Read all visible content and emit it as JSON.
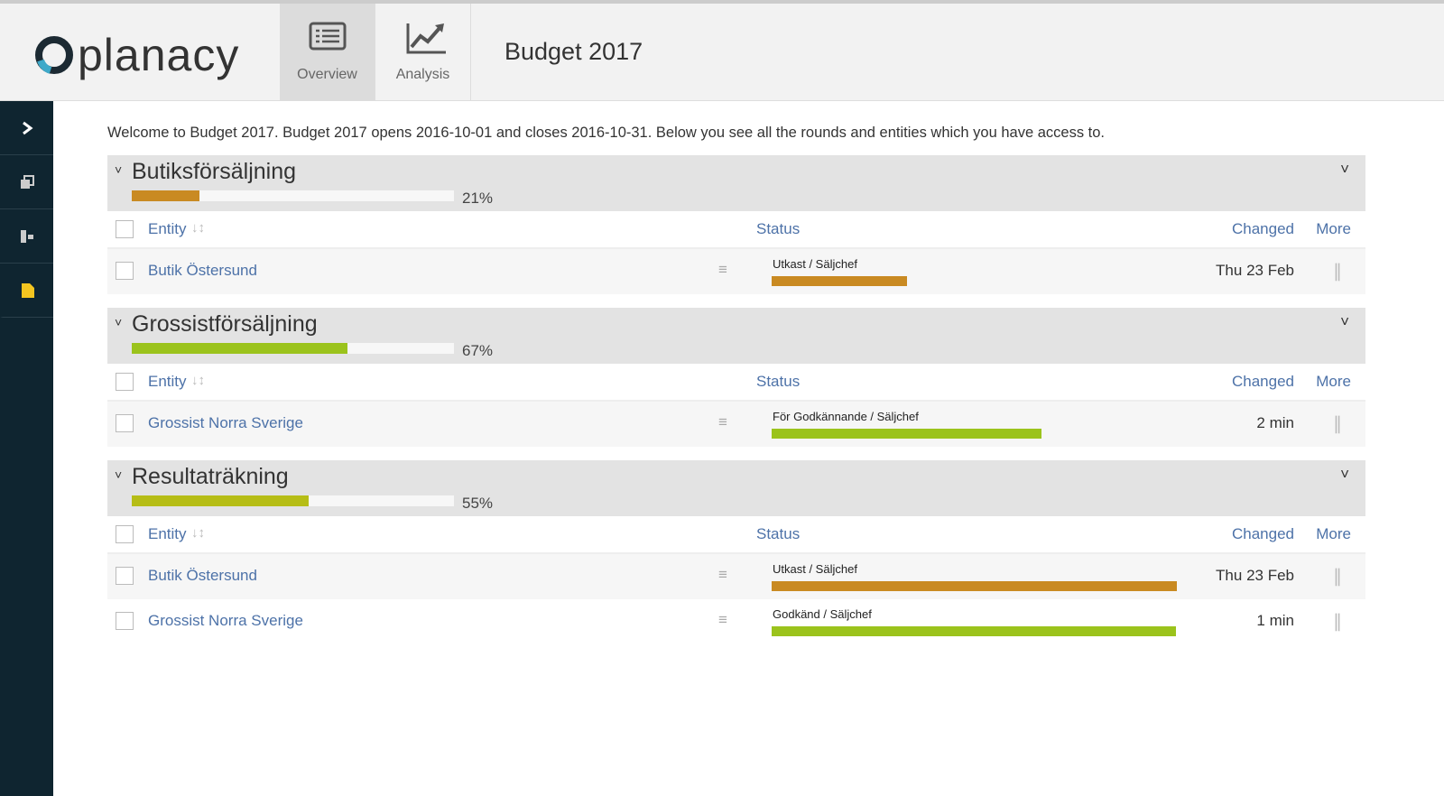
{
  "header": {
    "logo": "planacy",
    "nav": [
      {
        "label": "Overview"
      },
      {
        "label": "Analysis"
      }
    ],
    "page_title": "Budget 2017"
  },
  "welcome": "Welcome to Budget 2017. Budget 2017 opens 2016-10-01 and closes 2016-10-31. Below you see all the rounds and entities which you have access to.",
  "columns": {
    "entity": "Entity",
    "status": "Status",
    "changed": "Changed",
    "more": "More"
  },
  "sections": [
    {
      "title": "Butiksförsäljning",
      "percent": 21,
      "percent_label": "21%",
      "color": "#c98a22",
      "rows": [
        {
          "entity": "Butik Östersund",
          "status": "Utkast / Säljchef",
          "status_color": "#c98a22",
          "changed": "Thu 23 Feb"
        }
      ]
    },
    {
      "title": "Grossistförsäljning",
      "percent": 67,
      "percent_label": "67%",
      "color": "#9bc31c",
      "rows": [
        {
          "entity": "Grossist Norra Sverige",
          "status": "För Godkännande / Säljchef",
          "status_color": "#9bc31c",
          "changed": "2 min"
        }
      ]
    },
    {
      "title": "Resultaträkning",
      "percent": 55,
      "percent_label": "55%",
      "color": "#b6bd16",
      "rows": [
        {
          "entity": "Butik Östersund",
          "status": "Utkast / Säljchef",
          "status_color": "#c98a22",
          "changed": "Thu 23 Feb"
        },
        {
          "entity": "Grossist Norra Sverige",
          "status": "Godkänd / Säljchef",
          "status_color": "#9bc31c",
          "changed": "1 min"
        }
      ]
    }
  ]
}
